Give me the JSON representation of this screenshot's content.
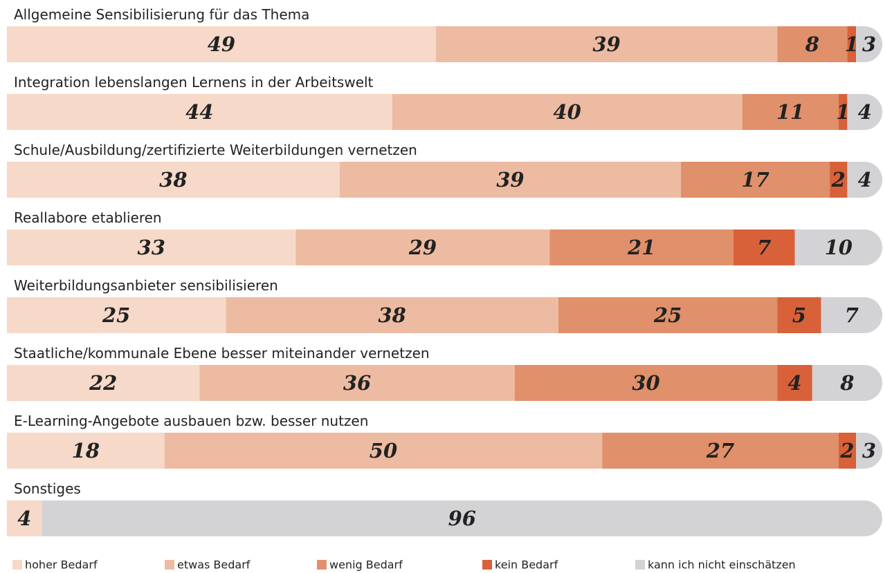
{
  "chart_data": {
    "type": "stacked-bar-horizontal",
    "categories": [
      "Allgemeine Sensibilisierung für das Thema",
      "Integration lebenslangen Lernens in der Arbeitswelt",
      "Schule/Ausbildung/zertifizierte Weiterbildungen vernetzen",
      "Reallabore etablieren",
      "Weiterbildungsanbieter sensibilisieren",
      "Staatliche/kommunale Ebene besser miteinander vernetzen",
      "E-Learning-Angebote ausbauen bzw. besser nutzen",
      "Sonstiges"
    ],
    "series": [
      {
        "name": "hoher Bedarf",
        "color": "#f6d9c9",
        "values": [
          49,
          44,
          38,
          33,
          25,
          22,
          18,
          4
        ]
      },
      {
        "name": "etwas Bedarf",
        "color": "#edbba1",
        "values": [
          39,
          40,
          39,
          29,
          38,
          36,
          50,
          null
        ]
      },
      {
        "name": "wenig Bedarf",
        "color": "#e0906b",
        "values": [
          8,
          11,
          17,
          21,
          25,
          30,
          27,
          null
        ]
      },
      {
        "name": "kein Bedarf",
        "color": "#d8613a",
        "values": [
          1,
          1,
          2,
          7,
          5,
          4,
          2,
          null
        ]
      },
      {
        "name": "kann ich nicht einschätzen",
        "color": "#d3d3d6",
        "values": [
          3,
          4,
          4,
          10,
          7,
          8,
          3,
          96
        ]
      }
    ],
    "xlim": [
      0,
      100
    ]
  }
}
